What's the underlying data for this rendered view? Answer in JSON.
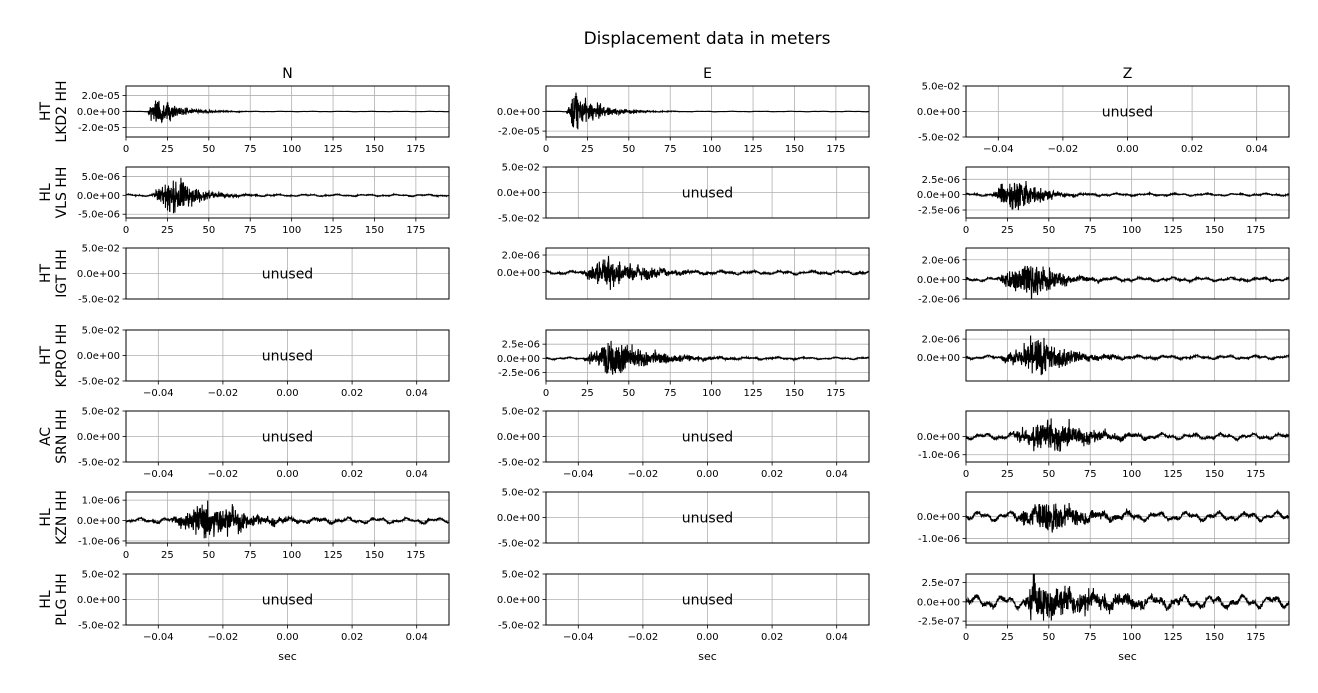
{
  "title": "Displacement data in meters",
  "columns": [
    "N",
    "E",
    "Z"
  ],
  "xlabel": "sec",
  "unused_label": "unused",
  "colors": {
    "trace": "#000000",
    "grid": "#b0b0b0",
    "unused_text": "#808080",
    "axes": "#000000"
  },
  "rows": [
    {
      "net": "HT",
      "sta": "LKD2 HH"
    },
    {
      "net": "HL",
      "sta": "VLS HH"
    },
    {
      "net": "HT",
      "sta": "IGT HH"
    },
    {
      "net": "HT",
      "sta": "KPRO HH"
    },
    {
      "net": "AC",
      "sta": "SRN HH"
    },
    {
      "net": "HL",
      "sta": "KZN HH"
    },
    {
      "net": "HL",
      "sta": "PLG HH"
    }
  ],
  "chart_data": {
    "type": "line",
    "grid": true,
    "title": "Displacement data in meters",
    "unused_xticks": [
      "−0.04",
      "−0.02",
      "0.00",
      "0.02",
      "0.04"
    ],
    "unused_yticks": [
      "5.0e-02",
      "0.0e+00",
      "-5.0e-02"
    ],
    "unused_xlim": [
      -0.05,
      0.05
    ],
    "unused_ylim": [
      -0.05,
      0.05
    ],
    "time_xticks": [
      "0",
      "25",
      "50",
      "75",
      "100",
      "125",
      "150",
      "175"
    ],
    "time_xlim": [
      0,
      195
    ],
    "panels": [
      [
        {
          "used": true,
          "ylim": [
            -3.2e-05,
            3.2e-05
          ],
          "yticks": [
            {
              "v": 2e-05,
              "l": "2.0e-05"
            },
            {
              "v": 0,
              "l": "0.0e+00"
            },
            {
              "v": -2e-05,
              "l": "-2.0e-05"
            }
          ],
          "onset": 13,
          "peak_t": 18,
          "amp": 2.7e-05,
          "decay": 12,
          "noise": 2e-07,
          "showx": true
        },
        {
          "used": true,
          "ylim": [
            -2.6e-05,
            2.6e-05
          ],
          "yticks": [
            {
              "v": 0,
              "l": "0.0e+00"
            },
            {
              "v": -2e-05,
              "l": "-2.0e-05"
            }
          ],
          "onset": 12,
          "peak_t": 17,
          "amp": 2.4e-05,
          "decay": 14,
          "noise": 2e-07,
          "showx": true
        },
        {
          "used": false,
          "showx": true
        }
      ],
      [
        {
          "used": true,
          "ylim": [
            -6e-06,
            7.5e-06
          ],
          "yticks": [
            {
              "v": 5e-06,
              "l": "5.0e-06"
            },
            {
              "v": 0,
              "l": "0.0e+00"
            },
            {
              "v": -5e-06,
              "l": "-5.0e-06"
            }
          ],
          "onset": 15,
          "peak_t": 30,
          "amp": 6.8e-06,
          "decay": 13,
          "noise": 2e-07,
          "showx": true
        },
        {
          "used": false,
          "showx": false
        },
        {
          "used": true,
          "ylim": [
            -3.8e-06,
            4.5e-06
          ],
          "yticks": [
            {
              "v": 2.5e-06,
              "l": "2.5e-06"
            },
            {
              "v": 0,
              "l": "0.0e+00"
            },
            {
              "v": -2.5e-06,
              "l": "-2.5e-06"
            }
          ],
          "onset": 15,
          "peak_t": 32,
          "amp": 4.3e-06,
          "decay": 12,
          "noise": 1.5e-07,
          "showx": true
        }
      ],
      [
        {
          "used": false,
          "showx": false
        },
        {
          "used": true,
          "ylim": [
            -3e-06,
            2.8e-06
          ],
          "yticks": [
            {
              "v": 2e-06,
              "l": "2.0e-06"
            },
            {
              "v": 0,
              "l": "0.0e+00"
            }
          ],
          "onset": 20,
          "peak_t": 38,
          "amp": 2.4e-06,
          "decay": 22,
          "noise": 1.5e-07,
          "showx": false
        },
        {
          "used": true,
          "ylim": [
            -2e-06,
            3.2e-06
          ],
          "yticks": [
            {
              "v": 2e-06,
              "l": "2.0e-06"
            },
            {
              "v": 0,
              "l": "0.0e+00"
            },
            {
              "v": -2e-06,
              "l": "-2.0e-06"
            }
          ],
          "onset": 18,
          "peak_t": 39,
          "amp": 2.8e-06,
          "decay": 15,
          "noise": 1.5e-07,
          "showx": false
        }
      ],
      [
        {
          "used": false,
          "showx": true
        },
        {
          "used": true,
          "ylim": [
            -4e-06,
            5e-06
          ],
          "yticks": [
            {
              "v": 2.5e-06,
              "l": "2.5e-06"
            },
            {
              "v": 0,
              "l": "0.0e+00"
            },
            {
              "v": -2.5e-06,
              "l": "-2.5e-06"
            }
          ],
          "onset": 22,
          "peak_t": 40,
          "amp": 4.2e-06,
          "decay": 24,
          "noise": 1.5e-07,
          "showx": true
        },
        {
          "used": true,
          "ylim": [
            -2.6e-06,
            3e-06
          ],
          "yticks": [
            {
              "v": 2e-06,
              "l": "2.0e-06"
            },
            {
              "v": 0,
              "l": "0.0e+00"
            }
          ],
          "onset": 20,
          "peak_t": 42,
          "amp": 2.8e-06,
          "decay": 20,
          "noise": 1.5e-07,
          "showx": false
        }
      ],
      [
        {
          "used": false,
          "showx": true
        },
        {
          "used": false,
          "showx": true
        },
        {
          "used": true,
          "ylim": [
            -1.4e-06,
            1.4e-06
          ],
          "yticks": [
            {
              "v": 0,
              "l": "0.0e+00"
            },
            {
              "v": -1e-06,
              "l": "-1.0e-06"
            }
          ],
          "onset": 24,
          "peak_t": 52,
          "amp": 1.3e-06,
          "decay": 22,
          "noise": 1.2e-07,
          "showx": true
        }
      ],
      [
        {
          "used": true,
          "ylim": [
            -1.1e-06,
            1.4e-06
          ],
          "yticks": [
            {
              "v": 1e-06,
              "l": "1.0e-06"
            },
            {
              "v": 0,
              "l": "0.0e+00"
            },
            {
              "v": -1e-06,
              "l": "-1.0e-06"
            }
          ],
          "onset": 25,
          "peak_t": 52,
          "amp": 1.2e-06,
          "decay": 22,
          "noise": 1e-07,
          "showx": true
        },
        {
          "used": false,
          "showx": false
        },
        {
          "used": true,
          "ylim": [
            -1.2e-06,
            1.1e-06
          ],
          "yticks": [
            {
              "v": 0,
              "l": "0.0e+00"
            },
            {
              "v": -1e-06,
              "l": "-1.0e-06"
            }
          ],
          "onset": 26,
          "peak_t": 50,
          "amp": 1e-06,
          "decay": 20,
          "noise": 1.5e-07,
          "showx": false
        }
      ],
      [
        {
          "used": false,
          "showx": true
        },
        {
          "used": false,
          "showx": true
        },
        {
          "used": true,
          "ylim": [
            -3e-07,
            3.6e-07
          ],
          "yticks": [
            {
              "v": 2.5e-07,
              "l": "2.5e-07"
            },
            {
              "v": 0,
              "l": "0.0e+00"
            },
            {
              "v": -2.5e-07,
              "l": "-2.5e-07"
            }
          ],
          "onset": 35,
          "peak_t": 40,
          "amp": 3.4e-07,
          "decay": 40,
          "noise": 6e-08,
          "showx": true
        }
      ]
    ]
  }
}
